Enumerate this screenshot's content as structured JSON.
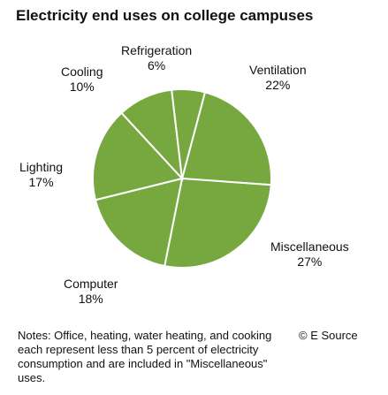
{
  "chart_data": {
    "type": "pie",
    "title": "Electricity end uses on college campuses",
    "colors": {
      "fill": "#77a840",
      "stroke": "#ffffff"
    },
    "slices": [
      {
        "label": "Ventilation",
        "value": 22,
        "value_label": "22%"
      },
      {
        "label": "Miscellaneous",
        "value": 27,
        "value_label": "27%"
      },
      {
        "label": "Computer",
        "value": 18,
        "value_label": "18%"
      },
      {
        "label": "Lighting",
        "value": 17,
        "value_label": "17%"
      },
      {
        "label": "Cooling",
        "value": 10,
        "value_label": "10%"
      },
      {
        "label": "Refrigeration",
        "value": 6,
        "value_label": "6%"
      }
    ],
    "notes": "Notes: Office, heating, water heating, and cooking each represent less than 5 percent of electricity consumption and are included in \"Miscellaneous\" uses.",
    "source": "© E Source"
  }
}
